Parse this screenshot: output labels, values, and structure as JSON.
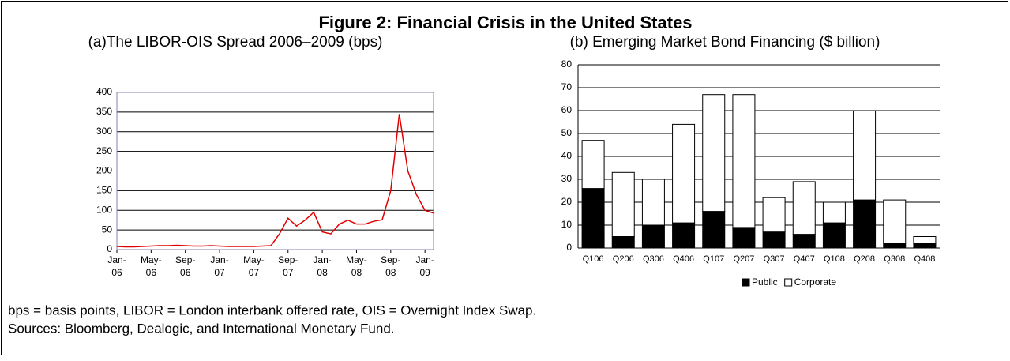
{
  "title": "Figure 2: Financial Crisis in the United States",
  "notes": [
    "bps = basis points, LIBOR = London interbank offered rate, OIS = Overnight Index Swap.",
    "Sources: Bloomberg, Dealogic, and International Monetary Fund."
  ],
  "chart_data": [
    {
      "type": "line",
      "title": "(a)The LIBOR-OIS Spread 2006–2009 (bps)",
      "color": "#e00000",
      "x": [
        "2006-01",
        "2006-02",
        "2006-03",
        "2006-04",
        "2006-05",
        "2006-06",
        "2006-07",
        "2006-08",
        "2006-09",
        "2006-10",
        "2006-11",
        "2006-12",
        "2007-01",
        "2007-02",
        "2007-03",
        "2007-04",
        "2007-05",
        "2007-06",
        "2007-07",
        "2007-08",
        "2007-09",
        "2007-10",
        "2007-11",
        "2007-12",
        "2008-01",
        "2008-02",
        "2008-03",
        "2008-04",
        "2008-05",
        "2008-06",
        "2008-07",
        "2008-08",
        "2008-09",
        "2008-10",
        "2008-11",
        "2008-12",
        "2009-01",
        "2009-02"
      ],
      "values": [
        8,
        7,
        7,
        8,
        9,
        10,
        10,
        11,
        10,
        9,
        9,
        10,
        9,
        8,
        8,
        8,
        8,
        9,
        10,
        40,
        80,
        60,
        75,
        95,
        45,
        40,
        65,
        75,
        65,
        65,
        72,
        76,
        150,
        345,
        200,
        140,
        100,
        93
      ],
      "xlim": [
        "2006-01",
        "2009-02"
      ],
      "xticks": [
        {
          "value": "2006-01",
          "label": "Jan- 06"
        },
        {
          "value": "2006-05",
          "label": "May- 06"
        },
        {
          "value": "2006-09",
          "label": "Sep- 06"
        },
        {
          "value": "2007-01",
          "label": "Jan- 07"
        },
        {
          "value": "2007-05",
          "label": "May- 07"
        },
        {
          "value": "2007-09",
          "label": "Sep- 07"
        },
        {
          "value": "2008-01",
          "label": "Jan- 08"
        },
        {
          "value": "2008-05",
          "label": "May- 08"
        },
        {
          "value": "2008-09",
          "label": "Sep- 08"
        },
        {
          "value": "2009-01",
          "label": "Jan- 09"
        }
      ],
      "ylim": [
        0,
        400
      ],
      "yticks": [
        0,
        50,
        100,
        150,
        200,
        250,
        300,
        350,
        400
      ],
      "grid": true
    },
    {
      "type": "stacked_bar",
      "title": "(b) Emerging Market Bond Financing ($ billion)",
      "categories": [
        "Q106",
        "Q206",
        "Q306",
        "Q406",
        "Q107",
        "Q207",
        "Q307",
        "Q407",
        "Q108",
        "Q208",
        "Q308",
        "Q408"
      ],
      "series": [
        {
          "name": "Public",
          "color": "#000000",
          "values": [
            26,
            5,
            10,
            11,
            16,
            9,
            7,
            6,
            11,
            21,
            2,
            2
          ]
        },
        {
          "name": "Corporate",
          "color": "#ffffff",
          "values": [
            21,
            28,
            20,
            43,
            51,
            58,
            15,
            23,
            9,
            39,
            19,
            3
          ]
        }
      ],
      "ylim": [
        0,
        80
      ],
      "yticks": [
        0,
        10,
        20,
        30,
        40,
        50,
        60,
        70,
        80
      ],
      "grid": true,
      "legend": "bottom"
    }
  ]
}
